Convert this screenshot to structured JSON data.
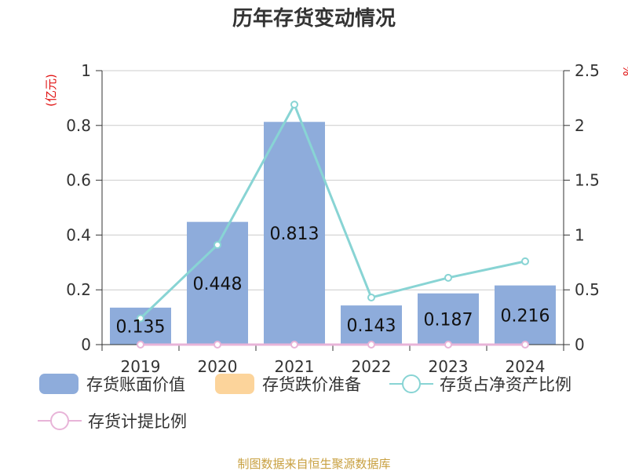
{
  "chart_data": {
    "type": "bar",
    "title": "历年存货变动情况",
    "categories": [
      "2019",
      "2020",
      "2021",
      "2022",
      "2023",
      "2024"
    ],
    "left_axis": {
      "unit": "(亿元)",
      "ylim": [
        0,
        1
      ],
      "ticks": [
        "0",
        "0.2",
        "0.4",
        "0.6",
        "0.8",
        "1"
      ]
    },
    "right_axis": {
      "unit": "%",
      "ylim": [
        0,
        2.5
      ],
      "ticks": [
        "0",
        "0.5",
        "1",
        "1.5",
        "2",
        "2.5"
      ]
    },
    "series": [
      {
        "name": "存货账面价值",
        "type": "bar",
        "axis": "left",
        "color": "#8eacdb",
        "values": [
          0.135,
          0.448,
          0.813,
          0.143,
          0.187,
          0.216
        ],
        "labels": [
          "0.135",
          "0.448",
          "0.813",
          "0.143",
          "0.187",
          "0.216"
        ]
      },
      {
        "name": "存货跌价准备",
        "type": "bar",
        "axis": "left",
        "color": "#fcd49b",
        "values": [
          0,
          0,
          0,
          0,
          0,
          0
        ]
      },
      {
        "name": "存货占净资产比例",
        "type": "line",
        "axis": "right",
        "color": "#88d4d4",
        "values": [
          0.24,
          0.91,
          2.19,
          0.43,
          0.61,
          0.76
        ]
      },
      {
        "name": "存货计提比例",
        "type": "line",
        "axis": "right",
        "color": "#e8b4d8",
        "values": [
          0,
          0,
          0,
          0,
          0,
          0
        ]
      }
    ],
    "grid": true,
    "legend_position": "bottom"
  },
  "footer": {
    "source": "制图数据来自恒生聚源数据库"
  }
}
